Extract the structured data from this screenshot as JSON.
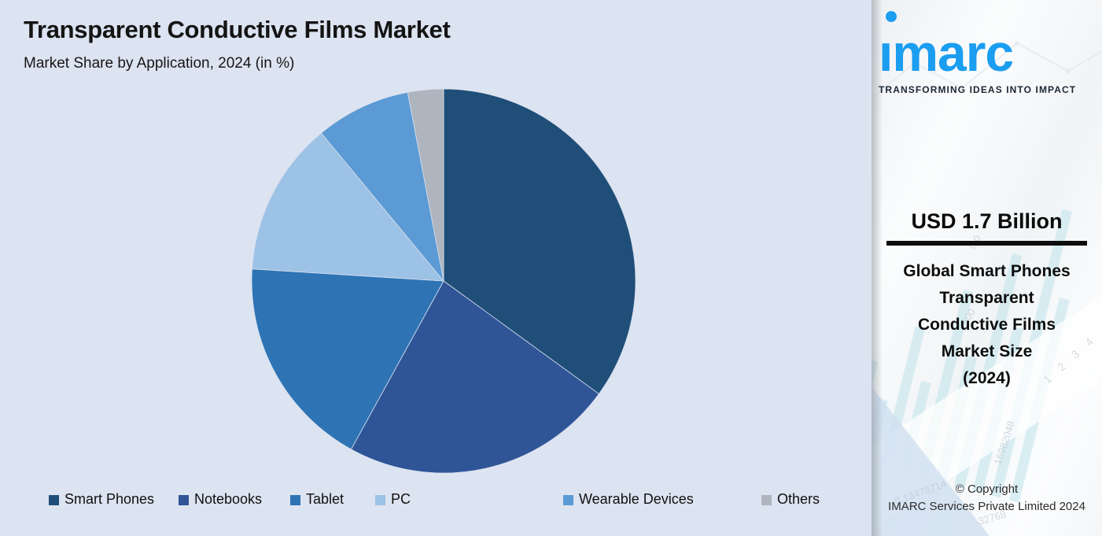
{
  "chart_data": {
    "type": "pie",
    "title": "Transparent Conductive Films Market",
    "subtitle": "Market Share by Application, 2024 (in %)",
    "unit": "percent",
    "start_angle_deg": 0,
    "direction": "clockwise",
    "legend_position": "bottom",
    "segments": [
      {
        "label": "Smart Phones",
        "value": 35,
        "color": "#1F4E78"
      },
      {
        "label": "Notebooks",
        "value": 23,
        "color": "#2F5597"
      },
      {
        "label": "Tablet",
        "value": 18,
        "color": "#2E74B5"
      },
      {
        "label": "PC",
        "value": 13,
        "color": "#9CC2E5"
      },
      {
        "label": "Wearable Devices",
        "value": 8,
        "color": "#5B9AD4"
      },
      {
        "label": "Others",
        "value": 3,
        "color": "#AEB5BF"
      }
    ]
  },
  "sidebar": {
    "logo": {
      "wordmark": "ımarc",
      "tagline": "TRANSFORMING IDEAS INTO IMPACT",
      "brand_color": "#1B9DF0"
    },
    "stat": {
      "value": "USD 1.7 Billion",
      "label_lines": [
        "Global Smart Phones",
        "Transparent",
        "Conductive Films",
        "Market Size",
        "(2024)"
      ]
    },
    "copyright_line1": "© Copyright",
    "copyright_line2": "IMARC Services Private Limited 2024",
    "watermark_numbers": [
      "0.0",
      "500",
      "1 2 3 4",
      "16982048",
      "0.13478714",
      "32768"
    ]
  },
  "colors": {
    "background": "#DCE3F1",
    "title_text": "#141414",
    "slice_separator": "#D8DFEE"
  }
}
